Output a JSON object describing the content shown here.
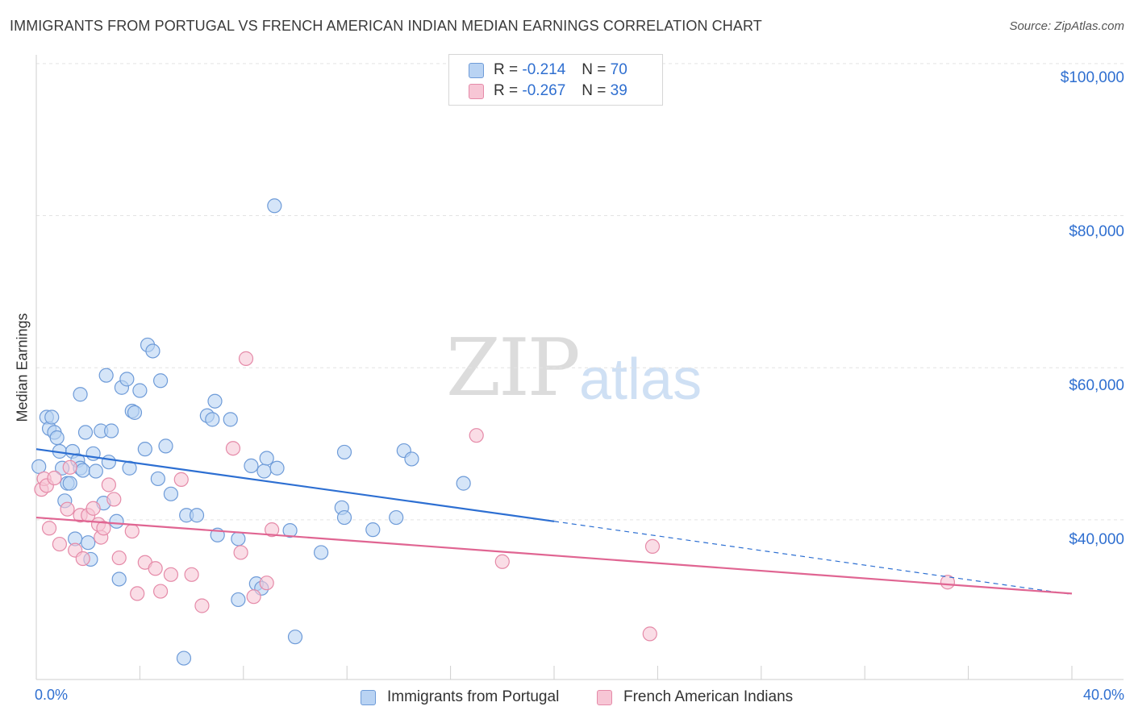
{
  "title": "IMMIGRANTS FROM PORTUGAL VS FRENCH AMERICAN INDIAN MEDIAN EARNINGS CORRELATION CHART",
  "source": "Source: ZipAtlas.com",
  "watermark": {
    "zip": "ZIP",
    "atlas": "atlas"
  },
  "legend_top": [
    {
      "r_label": "R =",
      "r_value": "-0.214",
      "n_label": "N =",
      "n_value": "70"
    },
    {
      "r_label": "R =",
      "r_value": "-0.267",
      "n_label": "N =",
      "n_value": "39"
    }
  ],
  "colors": {
    "blue_fill": "#b9d3f3",
    "blue_stroke": "#6e9bd8",
    "blue_line": "#2d6fd2",
    "pink_fill": "#f7c6d5",
    "pink_stroke": "#e58aa8",
    "pink_line": "#e06592",
    "axis_text": "#2f6fd0",
    "grid": "#e3e3e3"
  },
  "chart_data": {
    "type": "scatter",
    "title": "IMMIGRANTS FROM PORTUGAL VS FRENCH AMERICAN INDIAN MEDIAN EARNINGS CORRELATION CHART",
    "xlabel": "",
    "ylabel": "Median Earnings",
    "xlim": [
      0,
      40
    ],
    "ylim": [
      19000,
      102000
    ],
    "x_tick_labels": {
      "min": "0.0%",
      "max": "40.0%"
    },
    "y_ticks": [
      {
        "value": 100000,
        "label": "$100,000"
      },
      {
        "value": 80000,
        "label": "$80,000"
      },
      {
        "value": 60000,
        "label": "$60,000"
      },
      {
        "value": 40000,
        "label": "$40,000"
      }
    ],
    "series": [
      {
        "name": "Immigrants from Portugal",
        "color": "blue",
        "trend": {
          "x0": 0,
          "y0": 49300,
          "x1": 20,
          "y1": 39800,
          "dashed_to_x": 40,
          "dashed_to_y": 30200
        },
        "points": [
          [
            0.1,
            47000
          ],
          [
            0.4,
            53500
          ],
          [
            0.5,
            52000
          ],
          [
            0.6,
            53500
          ],
          [
            0.7,
            51500
          ],
          [
            0.8,
            50800
          ],
          [
            0.9,
            49000
          ],
          [
            1.0,
            46800
          ],
          [
            1.1,
            42500
          ],
          [
            1.2,
            44800
          ],
          [
            1.3,
            44800
          ],
          [
            1.4,
            49000
          ],
          [
            1.5,
            37500
          ],
          [
            1.6,
            47800
          ],
          [
            1.7,
            56500
          ],
          [
            1.7,
            46800
          ],
          [
            1.8,
            46500
          ],
          [
            1.9,
            51500
          ],
          [
            2.0,
            37000
          ],
          [
            2.1,
            34800
          ],
          [
            2.2,
            48700
          ],
          [
            2.3,
            46400
          ],
          [
            2.5,
            51700
          ],
          [
            2.6,
            42200
          ],
          [
            2.7,
            59000
          ],
          [
            2.8,
            47600
          ],
          [
            2.9,
            51700
          ],
          [
            3.1,
            39800
          ],
          [
            3.2,
            32200
          ],
          [
            3.3,
            57400
          ],
          [
            3.5,
            58500
          ],
          [
            3.6,
            46800
          ],
          [
            3.7,
            54300
          ],
          [
            3.8,
            54100
          ],
          [
            4.0,
            57000
          ],
          [
            4.2,
            49300
          ],
          [
            4.3,
            63000
          ],
          [
            4.5,
            62200
          ],
          [
            4.7,
            45400
          ],
          [
            4.8,
            58300
          ],
          [
            5.0,
            49700
          ],
          [
            5.2,
            43400
          ],
          [
            5.7,
            21800
          ],
          [
            5.8,
            40600
          ],
          [
            6.2,
            40600
          ],
          [
            6.6,
            53700
          ],
          [
            6.8,
            53200
          ],
          [
            6.9,
            55600
          ],
          [
            7.0,
            38000
          ],
          [
            7.5,
            53200
          ],
          [
            7.8,
            29500
          ],
          [
            7.8,
            37500
          ],
          [
            8.3,
            47100
          ],
          [
            8.5,
            31600
          ],
          [
            8.7,
            31000
          ],
          [
            8.8,
            46400
          ],
          [
            8.9,
            48100
          ],
          [
            9.2,
            81300
          ],
          [
            9.3,
            46800
          ],
          [
            9.8,
            38600
          ],
          [
            10.0,
            24600
          ],
          [
            11.0,
            35700
          ],
          [
            11.8,
            41600
          ],
          [
            11.9,
            40300
          ],
          [
            11.9,
            48900
          ],
          [
            13.0,
            38700
          ],
          [
            13.9,
            40300
          ],
          [
            14.2,
            49100
          ],
          [
            14.5,
            48000
          ],
          [
            16.5,
            44800
          ]
        ]
      },
      {
        "name": "French American Indians",
        "color": "pink",
        "trend": {
          "x0": 0,
          "y0": 40300,
          "x1": 40,
          "y1": 30300
        },
        "points": [
          [
            0.2,
            44000
          ],
          [
            0.3,
            45400
          ],
          [
            0.4,
            44500
          ],
          [
            0.5,
            38900
          ],
          [
            0.7,
            45500
          ],
          [
            0.9,
            36800
          ],
          [
            1.2,
            41400
          ],
          [
            1.3,
            46900
          ],
          [
            1.5,
            36000
          ],
          [
            1.7,
            40600
          ],
          [
            1.8,
            34900
          ],
          [
            2.0,
            40600
          ],
          [
            2.2,
            41500
          ],
          [
            2.4,
            39400
          ],
          [
            2.5,
            37700
          ],
          [
            2.6,
            38900
          ],
          [
            2.8,
            44600
          ],
          [
            3.0,
            42700
          ],
          [
            3.2,
            35000
          ],
          [
            3.7,
            38500
          ],
          [
            3.9,
            30300
          ],
          [
            4.2,
            34400
          ],
          [
            4.6,
            33600
          ],
          [
            4.8,
            30600
          ],
          [
            5.2,
            32800
          ],
          [
            5.6,
            45300
          ],
          [
            6.0,
            32800
          ],
          [
            6.4,
            28700
          ],
          [
            7.6,
            49400
          ],
          [
            7.9,
            35700
          ],
          [
            8.1,
            61200
          ],
          [
            8.4,
            29900
          ],
          [
            8.9,
            31700
          ],
          [
            9.1,
            38700
          ],
          [
            17.0,
            51100
          ],
          [
            18.0,
            34500
          ],
          [
            23.8,
            36500
          ],
          [
            23.7,
            25000
          ],
          [
            35.2,
            31800
          ]
        ]
      }
    ]
  },
  "bottom_legend": [
    "Immigrants from Portugal",
    "French American Indians"
  ]
}
